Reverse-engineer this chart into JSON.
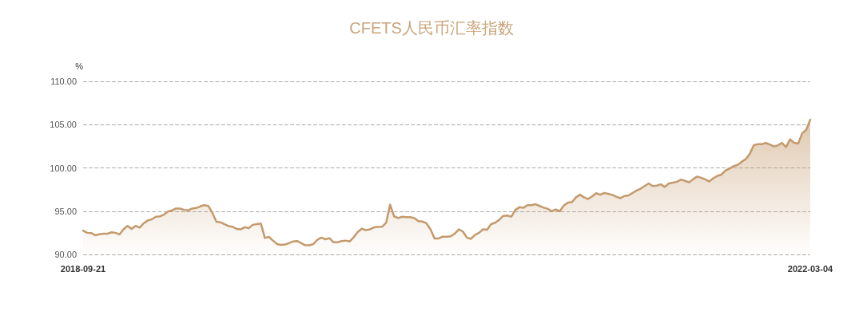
{
  "chart_data": {
    "type": "area",
    "title": "CFETS人民币汇率指数",
    "ylabel": "%",
    "categories": [
      "2018-09-21",
      null,
      null,
      null,
      null,
      null,
      null,
      null,
      null,
      null,
      null,
      null,
      null,
      null,
      null,
      null,
      null,
      null,
      null,
      null,
      null,
      null,
      null,
      null,
      null,
      null,
      null,
      null,
      null,
      null,
      null,
      null,
      null,
      null,
      null,
      null,
      null,
      null,
      null,
      null,
      null,
      null,
      null,
      null,
      null,
      null,
      null,
      null,
      null,
      null,
      null,
      null,
      null,
      null,
      null,
      null,
      null,
      null,
      null,
      null,
      null,
      null,
      null,
      null,
      null,
      null,
      null,
      null,
      null,
      null,
      null,
      null,
      null,
      null,
      null,
      null,
      null,
      null,
      null,
      null,
      null,
      null,
      null,
      null,
      null,
      null,
      null,
      null,
      null,
      null,
      null,
      null,
      null,
      null,
      null,
      null,
      null,
      null,
      null,
      null,
      null,
      null,
      null,
      null,
      null,
      null,
      null,
      null,
      null,
      null,
      null,
      null,
      null,
      null,
      null,
      null,
      null,
      null,
      null,
      null,
      null,
      null,
      null,
      null,
      null,
      null,
      null,
      null,
      null,
      null,
      null,
      null,
      null,
      null,
      null,
      null,
      null,
      null,
      null,
      null,
      null,
      null,
      null,
      null,
      null,
      null,
      null,
      null,
      null,
      null,
      null,
      null,
      null,
      null,
      null,
      null,
      null,
      null,
      null,
      null,
      null,
      null,
      null,
      null,
      null,
      null,
      null,
      null,
      null,
      null,
      null,
      null,
      null,
      null,
      null,
      null,
      null,
      null,
      null,
      null,
      "2022-03-04"
    ],
    "series": [
      {
        "color": "#c49a6c",
        "values": [
          92.75,
          92.5,
          92.47,
          92.22,
          92.32,
          92.39,
          92.39,
          92.56,
          92.5,
          92.31,
          92.9,
          93.3,
          92.96,
          93.3,
          93.1,
          93.6,
          93.93,
          94.05,
          94.35,
          94.4,
          94.6,
          94.95,
          95.1,
          95.3,
          95.3,
          95.15,
          95.1,
          95.3,
          95.36,
          95.55,
          95.69,
          95.6,
          94.8,
          93.78,
          93.72,
          93.5,
          93.28,
          93.2,
          92.95,
          92.9,
          93.15,
          93.03,
          93.42,
          93.5,
          93.58,
          91.9,
          92.03,
          91.6,
          91.2,
          91.1,
          91.15,
          91.3,
          91.5,
          91.55,
          91.3,
          91.05,
          91.06,
          91.2,
          91.7,
          91.94,
          91.75,
          91.88,
          91.4,
          91.4,
          91.55,
          91.6,
          91.5,
          92.0,
          92.6,
          92.97,
          92.8,
          92.9,
          93.13,
          93.17,
          93.2,
          93.65,
          95.75,
          94.4,
          94.2,
          94.35,
          94.3,
          94.3,
          94.2,
          93.84,
          93.8,
          93.6,
          92.9,
          91.85,
          91.85,
          92.05,
          92.05,
          92.1,
          92.4,
          92.9,
          92.65,
          91.95,
          91.8,
          92.25,
          92.5,
          92.9,
          92.85,
          93.5,
          93.66,
          94.0,
          94.45,
          94.49,
          94.37,
          95.15,
          95.45,
          95.4,
          95.68,
          95.7,
          95.8,
          95.6,
          95.4,
          95.27,
          95.0,
          95.2,
          95.0,
          95.65,
          96.0,
          96.03,
          96.6,
          96.9,
          96.6,
          96.4,
          96.7,
          97.08,
          96.9,
          97.1,
          97.0,
          96.88,
          96.67,
          96.5,
          96.75,
          96.82,
          97.1,
          97.38,
          97.6,
          97.9,
          98.2,
          97.9,
          97.95,
          98.1,
          97.8,
          98.2,
          98.3,
          98.4,
          98.65,
          98.5,
          98.33,
          98.7,
          99.0,
          98.86,
          98.67,
          98.43,
          98.8,
          99.08,
          99.22,
          99.68,
          99.92,
          100.2,
          100.34,
          100.7,
          101.0,
          101.6,
          102.6,
          102.75,
          102.75,
          102.88,
          102.7,
          102.48,
          102.6,
          102.9,
          102.4,
          103.3,
          102.9,
          102.8,
          104.0,
          104.4,
          105.57
        ]
      }
    ],
    "ylim": [
      90,
      110
    ],
    "yticks": [
      {
        "value": 90,
        "label": "90.00"
      },
      {
        "value": 95,
        "label": "95.00"
      },
      {
        "value": 100,
        "label": "100.00"
      },
      {
        "value": 105,
        "label": "105.00"
      },
      {
        "value": 110,
        "label": "110.00"
      }
    ],
    "grid": "y",
    "marker": "none",
    "line_style": "solid"
  }
}
